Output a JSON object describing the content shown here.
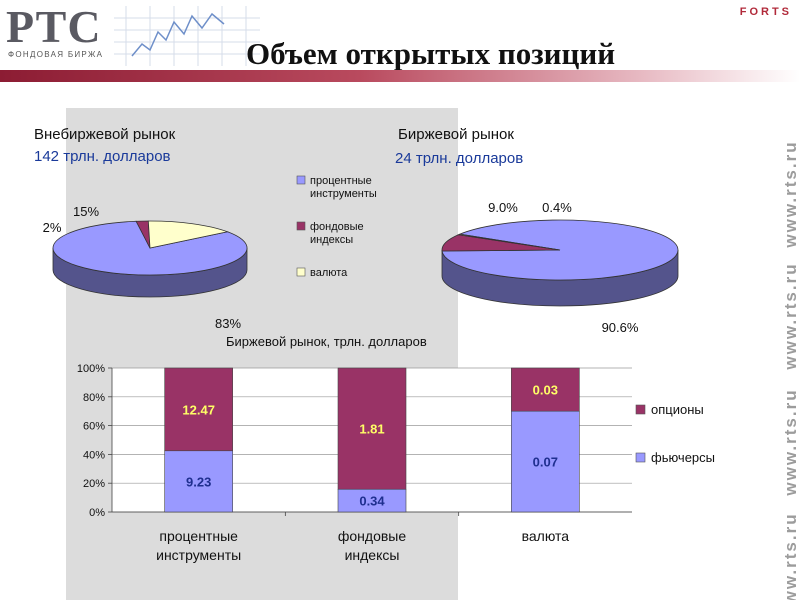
{
  "header": {
    "logo_text": "РТС",
    "logo_subtext": "ФОНДОВАЯ БИРЖА",
    "forts": "FORTS",
    "title": "Объем открытых позиций"
  },
  "side_url": [
    "www.rts.ru",
    "www.rts.ru",
    "www.rts.ru",
    "www.rts.ru"
  ],
  "colors": {
    "purple": "#9999ff",
    "maroon": "#993366",
    "cream": "#ffffcc",
    "accent": "#8c1c33"
  },
  "chart_data": [
    {
      "type": "pie",
      "title": "Внебиржевой рынок",
      "subtitle": "142 трлн. долларов",
      "labels": [
        "процентные инструменты",
        "фондовые индексы",
        "валюта"
      ],
      "values": [
        83,
        2,
        15
      ],
      "value_labels": [
        "83%",
        "2%",
        "15%"
      ]
    },
    {
      "type": "pie",
      "title": "Биржевой рынок",
      "subtitle": "24 трлн. долларов",
      "labels": [
        "процентные инструменты",
        "фондовые индексы",
        "валюта"
      ],
      "values": [
        90.6,
        9.0,
        0.4
      ],
      "value_labels": [
        "90.6%",
        "9.0%",
        "0.4%"
      ],
      "legend": {
        "position": "between-pies",
        "items": [
          "процентные инструменты",
          "фондовые индексы",
          "валюта"
        ],
        "lines": [
          [
            "процентные",
            "инструменты"
          ],
          [
            "фондовые",
            "индексы"
          ],
          [
            "валюта"
          ]
        ]
      }
    },
    {
      "type": "bar",
      "stacked": "percent",
      "title": "Биржевой рынок,  трлн. долларов",
      "categories": [
        [
          "процентные",
          "инструменты"
        ],
        [
          "фондовые",
          "индексы"
        ],
        [
          "валюта"
        ]
      ],
      "series": [
        {
          "name": "фьючерсы",
          "values": [
            9.23,
            0.34,
            0.07
          ],
          "labels": [
            "9.23",
            "0.34",
            "0.07"
          ]
        },
        {
          "name": "опционы",
          "values": [
            12.47,
            1.81,
            0.03
          ],
          "labels": [
            "12.47",
            "1.81",
            "0.03"
          ]
        }
      ],
      "yticks": [
        "0%",
        "20%",
        "40%",
        "60%",
        "80%",
        "100%"
      ],
      "ylim": [
        0,
        100
      ],
      "grid": true,
      "legend": "right"
    }
  ]
}
